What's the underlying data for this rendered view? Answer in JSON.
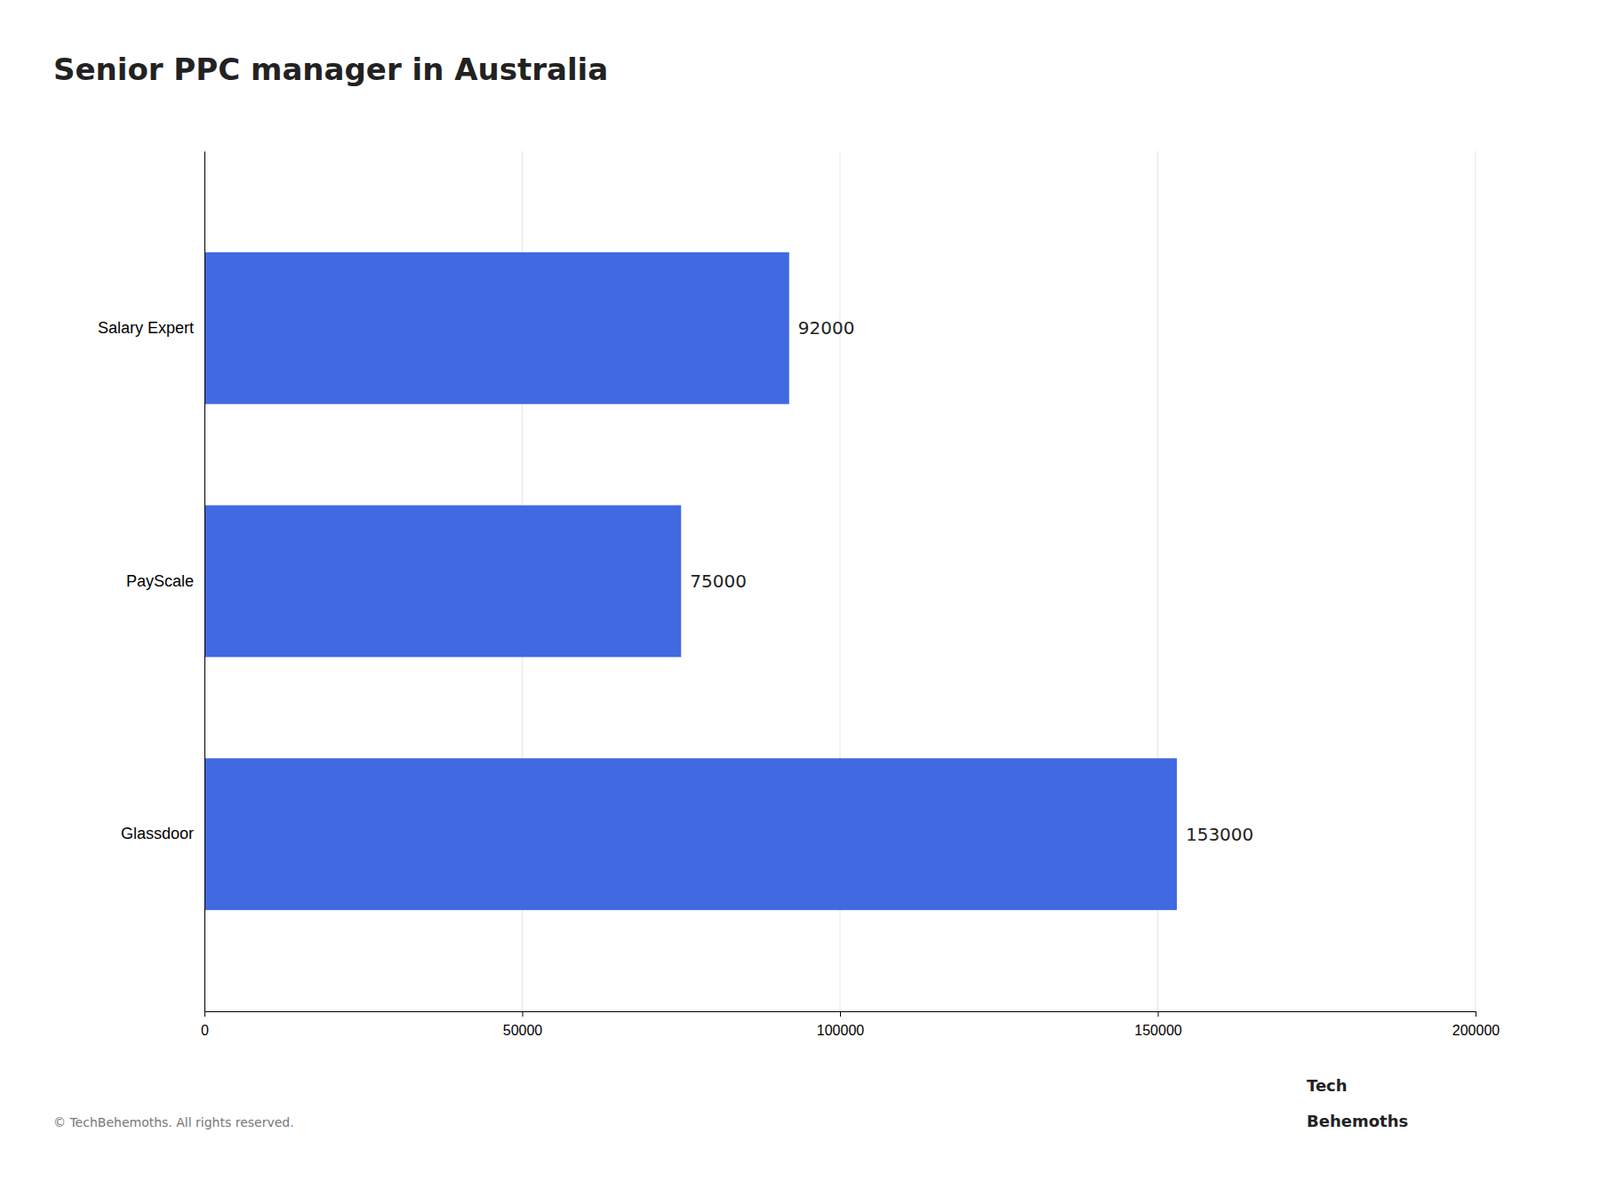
{
  "chart_data": {
    "type": "bar",
    "title": "Senior PPC manager in Australia",
    "orientation": "horizontal",
    "categories": [
      "Glassdoor",
      "PayScale",
      "Salary Expert"
    ],
    "values": [
      153000,
      75000,
      92000
    ],
    "color": "#4169E1",
    "xlim": [
      0,
      200000
    ],
    "xticks": [
      0,
      50000,
      100000,
      150000,
      200000
    ],
    "grid": true,
    "data_labels": true,
    "annotations": [
      "© TechBehemoths. All rights reserved.",
      "Tech",
      "Behemoths"
    ]
  }
}
